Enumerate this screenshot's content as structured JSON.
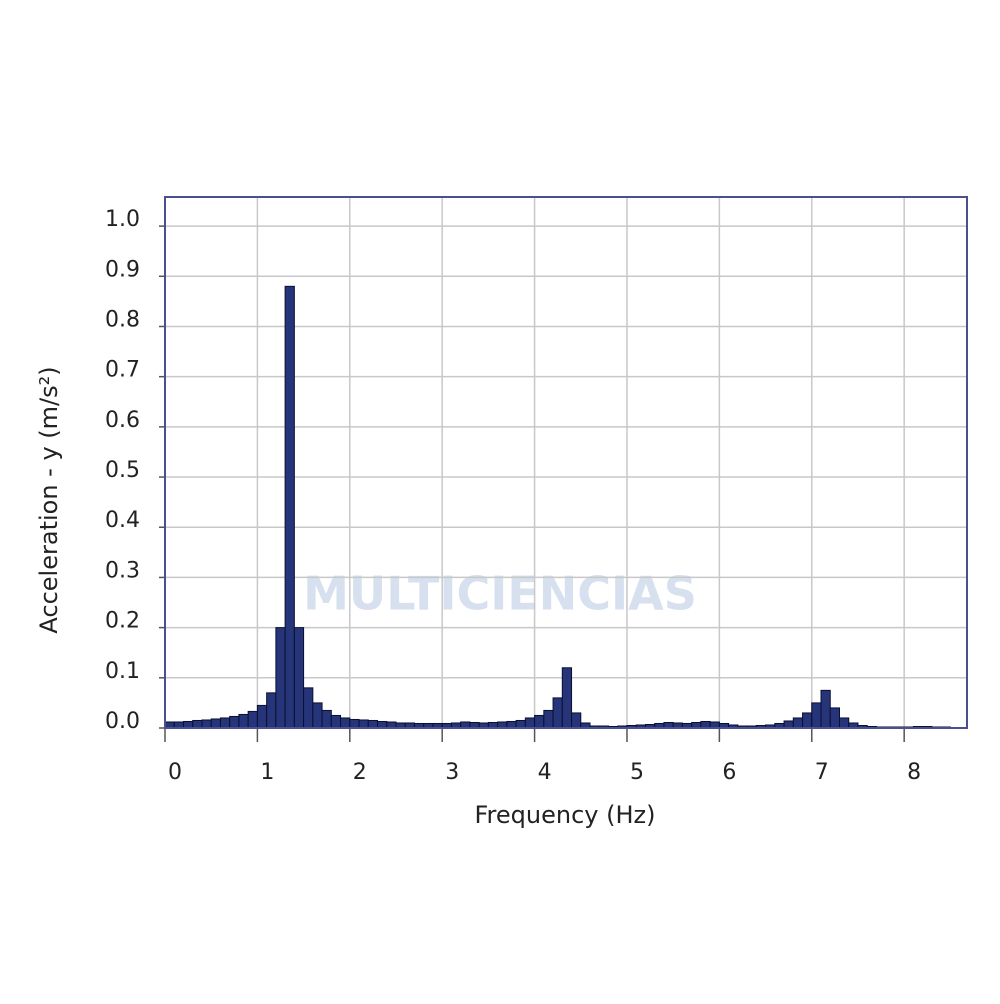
{
  "chart_data": {
    "type": "bar",
    "x_label": "Frequency (Hz)",
    "y_label": "Acceleration - y   (m/s²)",
    "watermark": "MULTICIENCIAS",
    "color": "#26347a",
    "grid": true,
    "xlim": [
      0,
      8.68
    ],
    "ylim": [
      0,
      1.058
    ],
    "xticks": [
      0,
      1,
      2,
      3,
      4,
      5,
      6,
      7,
      8
    ],
    "yticks": [
      {
        "value": 0,
        "label": "0.0"
      },
      0.1,
      0.2,
      0.3,
      0.4,
      0.5,
      0.6,
      0.7,
      0.8,
      0.9,
      {
        "value": 1,
        "label": "1.0"
      }
    ],
    "x": [
      0.05,
      0.15,
      0.25,
      0.35,
      0.45,
      0.55,
      0.65,
      0.75,
      0.85,
      0.95,
      1.05,
      1.15,
      1.25,
      1.35,
      1.45,
      1.55,
      1.65,
      1.75,
      1.85,
      1.95,
      2.05,
      2.15,
      2.25,
      2.35,
      2.45,
      2.55,
      2.65,
      2.75,
      2.85,
      2.95,
      3.05,
      3.15,
      3.25,
      3.35,
      3.45,
      3.55,
      3.65,
      3.75,
      3.85,
      3.95,
      4.05,
      4.15,
      4.25,
      4.35,
      4.45,
      4.55,
      4.65,
      4.75,
      4.85,
      4.95,
      5.05,
      5.15,
      5.25,
      5.35,
      5.45,
      5.55,
      5.65,
      5.75,
      5.85,
      5.95,
      6.05,
      6.15,
      6.25,
      6.35,
      6.45,
      6.55,
      6.65,
      6.75,
      6.85,
      6.95,
      7.05,
      7.15,
      7.25,
      7.35,
      7.45,
      7.55,
      7.65,
      7.75,
      7.85,
      7.95,
      8.05,
      8.15,
      8.25,
      8.35,
      8.45
    ],
    "values": [
      0.012,
      0.012,
      0.013,
      0.015,
      0.016,
      0.018,
      0.02,
      0.023,
      0.027,
      0.033,
      0.045,
      0.07,
      0.2,
      0.88,
      0.2,
      0.08,
      0.05,
      0.035,
      0.025,
      0.02,
      0.017,
      0.016,
      0.015,
      0.013,
      0.012,
      0.01,
      0.01,
      0.009,
      0.009,
      0.009,
      0.009,
      0.01,
      0.012,
      0.011,
      0.01,
      0.011,
      0.012,
      0.013,
      0.015,
      0.02,
      0.025,
      0.035,
      0.06,
      0.12,
      0.03,
      0.01,
      0.004,
      0.004,
      0.003,
      0.004,
      0.005,
      0.006,
      0.007,
      0.009,
      0.011,
      0.01,
      0.009,
      0.011,
      0.013,
      0.012,
      0.009,
      0.006,
      0.004,
      0.004,
      0.005,
      0.006,
      0.009,
      0.014,
      0.02,
      0.03,
      0.05,
      0.075,
      0.04,
      0.02,
      0.01,
      0.005,
      0.003,
      0.002,
      0.002,
      0.002,
      0.002,
      0.003,
      0.003,
      0.002,
      0.002
    ]
  }
}
